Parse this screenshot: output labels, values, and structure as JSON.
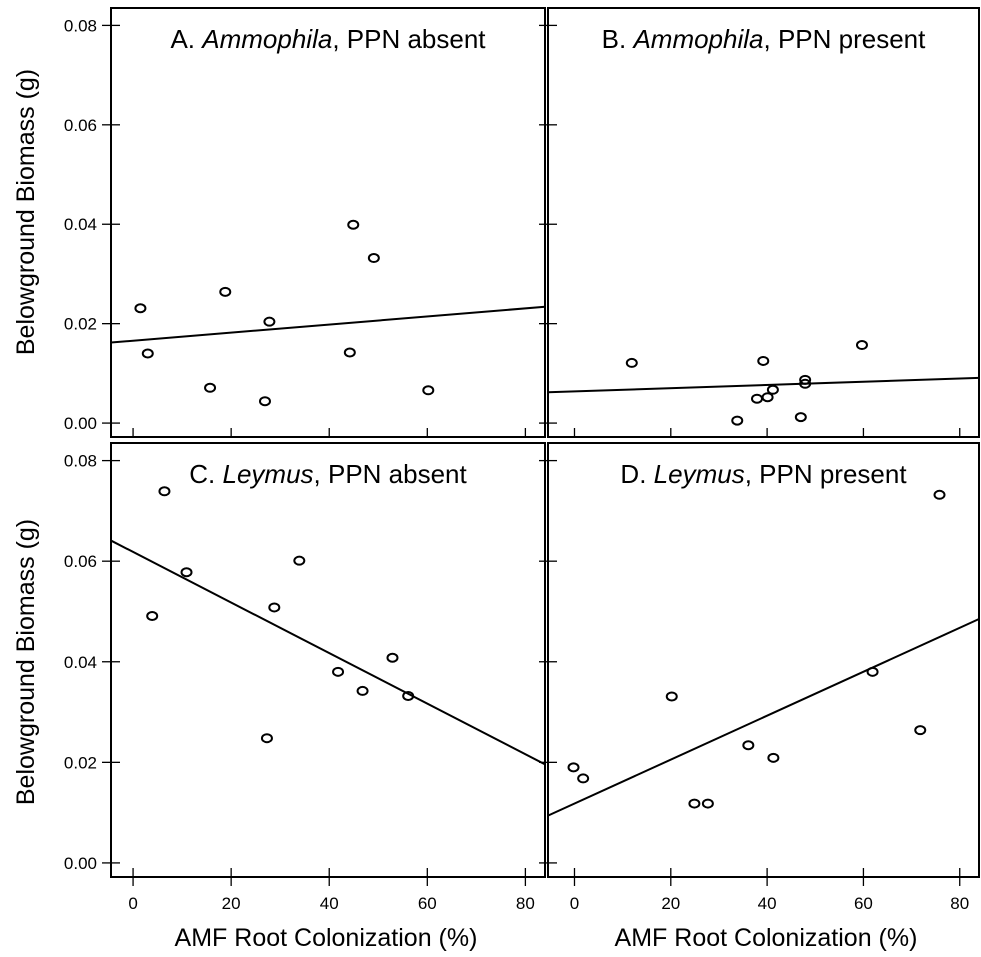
{
  "figure": {
    "ylabel": "Belowground Biomass (g)",
    "xlabel": "AMF Root Colonization (%)"
  },
  "chart_data": [
    {
      "type": "scatter",
      "title_prefix": "A. ",
      "title_species": "Ammophila",
      "title_suffix": ", PPN absent",
      "xlim": [
        -4.5,
        84
      ],
      "ylim": [
        -0.0028,
        0.0835
      ],
      "xticks": [
        0,
        20,
        40,
        60,
        80
      ],
      "yticks": [
        0.0,
        0.02,
        0.04,
        0.06,
        0.08
      ],
      "ytick_labels": [
        "0.00",
        "0.02",
        "0.04",
        "0.06",
        "0.08"
      ],
      "x": [
        1.5,
        3,
        15.7,
        18.8,
        26.9,
        27.8,
        44.2,
        44.9,
        49.1,
        60.2
      ],
      "y": [
        0.0231,
        0.014,
        0.0071,
        0.0264,
        0.0044,
        0.0204,
        0.0142,
        0.0399,
        0.0332,
        0.0066
      ],
      "fit_line": {
        "x": [
          -4.5,
          84
        ],
        "y": [
          0.0162,
          0.0234
        ]
      }
    },
    {
      "type": "scatter",
      "title_prefix": "B. ",
      "title_species": "Ammophila",
      "title_suffix": ", PPN present",
      "xlim": [
        -5.5,
        84
      ],
      "ylim": [
        -0.0028,
        0.0835
      ],
      "xticks": [
        0,
        20,
        40,
        60,
        80
      ],
      "yticks": [
        0.0,
        0.02,
        0.04,
        0.06,
        0.08
      ],
      "x": [
        11.9,
        33.8,
        37.9,
        39.2,
        40.1,
        41.2,
        47,
        47.9,
        47.9,
        59.7
      ],
      "y": [
        0.0121,
        0.0005,
        0.0049,
        0.0125,
        0.0052,
        0.0067,
        0.0012,
        0.0079,
        0.0087,
        0.0157
      ],
      "fit_line": {
        "x": [
          -5.5,
          84
        ],
        "y": [
          0.0062,
          0.0091
        ]
      }
    },
    {
      "type": "scatter",
      "title_prefix": "C. ",
      "title_species": "Leymus",
      "title_suffix": ", PPN absent",
      "xlim": [
        -4.5,
        84
      ],
      "ylim": [
        -0.0028,
        0.0835
      ],
      "xticks": [
        0,
        20,
        40,
        60,
        80
      ],
      "yticks": [
        0.0,
        0.02,
        0.04,
        0.06,
        0.08
      ],
      "ytick_labels": [
        "0.00",
        "0.02",
        "0.04",
        "0.06",
        "0.08"
      ],
      "x": [
        3.9,
        6.4,
        10.9,
        27.3,
        28.8,
        33.9,
        41.8,
        46.8,
        52.9,
        56.1
      ],
      "y": [
        0.0491,
        0.0739,
        0.0578,
        0.0248,
        0.0508,
        0.0601,
        0.038,
        0.0342,
        0.0408,
        0.0332
      ],
      "fit_line": {
        "x": [
          -4.5,
          84
        ],
        "y": [
          0.0641,
          0.0196
        ]
      }
    },
    {
      "type": "scatter",
      "title_prefix": "D. ",
      "title_species": "Leymus",
      "title_suffix": ", PPN present",
      "xlim": [
        -5.5,
        84
      ],
      "ylim": [
        -0.0028,
        0.0835
      ],
      "xticks": [
        0,
        20,
        40,
        60,
        80
      ],
      "yticks": [
        0.0,
        0.02,
        0.04,
        0.06,
        0.08
      ],
      "x": [
        -0.2,
        1.8,
        20.2,
        24.9,
        27.7,
        36.1,
        41.3,
        61.9,
        71.8,
        75.8
      ],
      "y": [
        0.019,
        0.0168,
        0.0331,
        0.0118,
        0.0118,
        0.0234,
        0.0209,
        0.038,
        0.0264,
        0.0732
      ],
      "fit_line": {
        "x": [
          -5.5,
          84
        ],
        "y": [
          0.0094,
          0.0485
        ]
      }
    }
  ]
}
